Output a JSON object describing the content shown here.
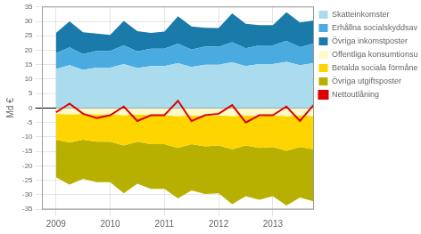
{
  "chart_data": {
    "type": "area",
    "title": "",
    "ylabel": "Md €",
    "x": [
      2009.0,
      2009.25,
      2009.5,
      2009.75,
      2010.0,
      2010.25,
      2010.5,
      2010.75,
      2011.0,
      2011.25,
      2011.5,
      2011.75,
      2012.0,
      2012.25,
      2012.5,
      2012.75,
      2013.0,
      2013.25,
      2013.5,
      2013.75
    ],
    "xlim": [
      2008.75,
      2013.75
    ],
    "xticks": [
      2009,
      2010,
      2011,
      2012,
      2013
    ],
    "ylim": [
      -35,
      35
    ],
    "yticks": [
      -35,
      -30,
      -25,
      -20,
      -15,
      -10,
      -5,
      0,
      5,
      10,
      15,
      20,
      25,
      30,
      35
    ],
    "stacked": true,
    "grid": true,
    "legend": "right",
    "series": [
      {
        "name": "Skatteinkomster",
        "color": "#aadcee",
        "values": [
          13.5,
          14.8,
          13.2,
          14.0,
          14.0,
          15.2,
          13.8,
          14.5,
          14.5,
          15.5,
          14.2,
          15.0,
          15.0,
          15.8,
          14.5,
          15.2,
          15.2,
          16.0,
          14.8,
          15.5
        ]
      },
      {
        "name": "Erhållna socialskyddsavgifter",
        "color": "#4aabe0",
        "values": [
          5.5,
          6.2,
          5.5,
          5.8,
          5.8,
          6.5,
          5.8,
          6.0,
          6.0,
          6.8,
          6.0,
          6.3,
          6.2,
          7.0,
          6.2,
          6.5,
          6.5,
          7.2,
          6.3,
          6.8
        ]
      },
      {
        "name": "Övriga inkomstposter",
        "color": "#1a7aaa",
        "values": [
          7.0,
          9.0,
          7.5,
          6.0,
          5.5,
          8.5,
          7.0,
          5.5,
          6.0,
          9.5,
          8.0,
          6.5,
          6.5,
          10.0,
          8.5,
          7.0,
          7.0,
          10.0,
          8.5,
          8.0
        ]
      },
      {
        "name": "Offentliga konsumtionsutgifter",
        "color": "#fffac8",
        "values": [
          -2.0,
          -2.2,
          -2.0,
          -2.2,
          -2.2,
          -2.5,
          -2.2,
          -2.5,
          -2.5,
          -2.8,
          -2.5,
          -2.8,
          -2.5,
          -2.8,
          -2.5,
          -2.8,
          -2.5,
          -2.8,
          -2.5,
          -2.8
        ]
      },
      {
        "name": "Betalda sociala förmåner",
        "color": "#ffd500",
        "values": [
          -9.0,
          -9.8,
          -9.0,
          -9.5,
          -9.5,
          -10.5,
          -9.5,
          -10.0,
          -10.0,
          -11.0,
          -10.0,
          -10.5,
          -10.5,
          -11.5,
          -10.5,
          -11.0,
          -11.0,
          -12.0,
          -11.0,
          -11.5
        ]
      },
      {
        "name": "Övriga utgiftsposter",
        "color": "#b8b000",
        "values": [
          -13.0,
          -14.5,
          -13.5,
          -14.0,
          -14.0,
          -16.5,
          -14.5,
          -15.5,
          -15.5,
          -17.5,
          -16.0,
          -16.5,
          -16.5,
          -19.0,
          -17.5,
          -18.0,
          -17.0,
          -19.0,
          -17.5,
          -18.0
        ]
      },
      {
        "name": "Nettoutlåning",
        "color": "#dd0000",
        "type": "line",
        "values": [
          -1.5,
          1.5,
          -2.0,
          -3.5,
          -2.5,
          0.5,
          -4.5,
          -2.5,
          -2.5,
          2.5,
          -4.5,
          -2.5,
          -2.0,
          1.0,
          -5.0,
          -2.5,
          -2.5,
          0.5,
          -4.5,
          1.0
        ]
      }
    ]
  }
}
